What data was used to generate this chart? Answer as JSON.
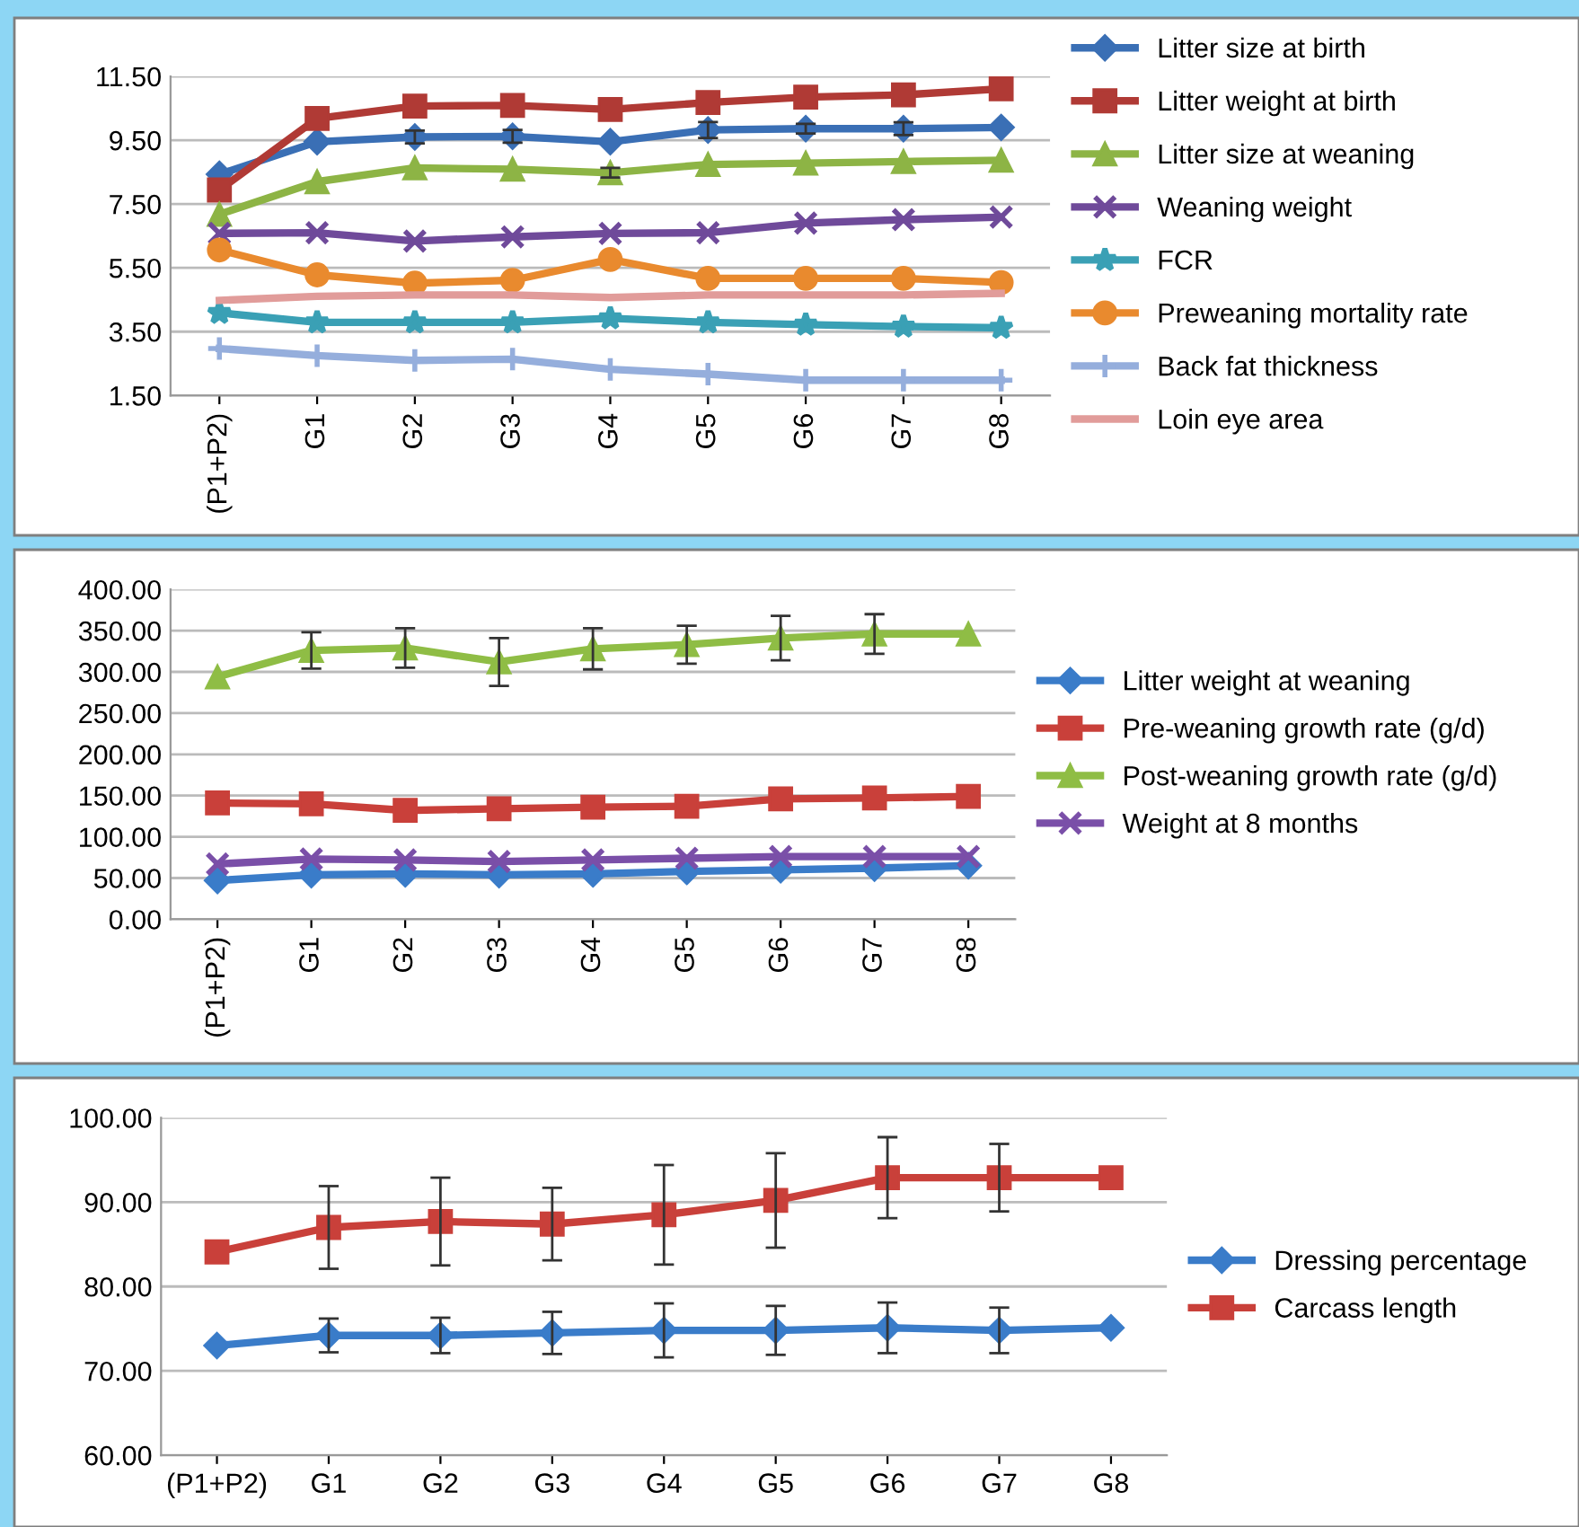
{
  "chart_data": [
    {
      "type": "line",
      "categories": [
        "(P1+P2)",
        "G1",
        "G2",
        "G3",
        "G4",
        "G5",
        "G6",
        "G7",
        "G8"
      ],
      "ylim": [
        1.5,
        11.5
      ],
      "yticks": [
        {
          "value": 1.5,
          "label": "1.50"
        },
        {
          "value": 3.5,
          "label": "3.50"
        },
        {
          "value": 5.5,
          "label": "5.50"
        },
        {
          "value": 7.5,
          "label": "7.50"
        },
        {
          "value": 9.5,
          "label": "9.50"
        },
        {
          "value": 11.5,
          "label": "11.50"
        }
      ],
      "grid": "y",
      "legend": "right",
      "series": [
        {
          "name": "Litter size at birth",
          "color": "#3a6fb5",
          "marker": "diamond",
          "values": [
            8.43,
            9.45,
            9.6,
            9.62,
            9.45,
            9.82,
            9.86,
            9.86,
            9.9
          ],
          "errors": [
            null,
            null,
            0.2,
            0.2,
            null,
            0.25,
            0.15,
            0.2,
            null
          ]
        },
        {
          "name": "Litter weight at birth",
          "color": "#b03a35",
          "marker": "square",
          "values": [
            7.94,
            10.18,
            10.57,
            10.59,
            10.46,
            10.68,
            10.85,
            10.92,
            11.11
          ]
        },
        {
          "name": "Litter size at weaning",
          "color": "#8db445",
          "marker": "triangle",
          "values": [
            7.18,
            8.2,
            8.63,
            8.59,
            8.48,
            8.74,
            8.78,
            8.83,
            8.87
          ],
          "errors": [
            null,
            null,
            null,
            null,
            0.15,
            null,
            null,
            null,
            null
          ]
        },
        {
          "name": "Weaning weight",
          "color": "#6f4a9a",
          "marker": "cross",
          "values": [
            6.58,
            6.6,
            6.34,
            6.47,
            6.58,
            6.6,
            6.9,
            7.01,
            7.09
          ]
        },
        {
          "name": "FCR",
          "color": "#3aa0b5",
          "marker": "star",
          "values": [
            4.09,
            3.79,
            3.79,
            3.79,
            3.92,
            3.79,
            3.72,
            3.66,
            3.62
          ]
        },
        {
          "name": "Preweaning mortality rate",
          "color": "#e98a2e",
          "marker": "circle",
          "values": [
            6.06,
            5.28,
            5.02,
            5.11,
            5.76,
            5.17,
            5.17,
            5.17,
            5.04
          ]
        },
        {
          "name": "Back fat thickness",
          "color": "#95aedc",
          "marker": "plus",
          "values": [
            2.97,
            2.75,
            2.6,
            2.64,
            2.32,
            2.17,
            1.98,
            1.98,
            1.98
          ]
        },
        {
          "name": "Loin eye area",
          "color": "#e19c9a",
          "marker": "none",
          "values": [
            4.48,
            4.61,
            4.65,
            4.65,
            4.57,
            4.65,
            4.65,
            4.65,
            4.7
          ]
        }
      ]
    },
    {
      "type": "line",
      "categories": [
        "(P1+P2)",
        "G1",
        "G2",
        "G3",
        "G4",
        "G5",
        "G6",
        "G7",
        "G8"
      ],
      "ylim": [
        0,
        400
      ],
      "yticks": [
        {
          "value": 0,
          "label": "0.00"
        },
        {
          "value": 50,
          "label": "50.00"
        },
        {
          "value": 100,
          "label": "100.00"
        },
        {
          "value": 150,
          "label": "150.00"
        },
        {
          "value": 200,
          "label": "200.00"
        },
        {
          "value": 250,
          "label": "250.00"
        },
        {
          "value": 300,
          "label": "300.00"
        },
        {
          "value": 350,
          "label": "350.00"
        },
        {
          "value": 400,
          "label": "400.00"
        }
      ],
      "grid": "y",
      "legend": "right",
      "series": [
        {
          "name": "Litter weight at weaning",
          "color": "#3a7cc9",
          "marker": "diamond",
          "values": [
            47,
            54,
            55,
            54,
            55,
            58,
            60,
            62,
            65
          ]
        },
        {
          "name": "Pre-weaning growth rate (g/d)",
          "color": "#c9403a",
          "marker": "square",
          "values": [
            141,
            140,
            132,
            134,
            136,
            137,
            146,
            147,
            149
          ]
        },
        {
          "name": "Post-weaning growth rate (g/d)",
          "color": "#8fbd45",
          "marker": "triangle",
          "values": [
            294,
            326,
            329,
            312,
            328,
            333,
            341,
            346,
            346
          ],
          "errors": [
            null,
            22,
            24,
            29,
            25,
            23,
            27,
            24,
            null
          ]
        },
        {
          "name": "Weight at 8 months",
          "color": "#7a4fa8",
          "marker": "cross",
          "values": [
            67,
            73,
            72,
            70,
            72,
            74,
            76,
            76,
            76
          ]
        }
      ]
    },
    {
      "type": "line",
      "categories": [
        "(P1+P2)",
        "G1",
        "G2",
        "G3",
        "G4",
        "G5",
        "G6",
        "G7",
        "G8"
      ],
      "ylim": [
        60,
        100
      ],
      "yticks": [
        {
          "value": 60,
          "label": "60.00"
        },
        {
          "value": 70,
          "label": "70.00"
        },
        {
          "value": 80,
          "label": "80.00"
        },
        {
          "value": 90,
          "label": "90.00"
        },
        {
          "value": 100,
          "label": "100.00"
        }
      ],
      "grid": "y",
      "legend": "right",
      "series": [
        {
          "name": "Dressing percentage",
          "color": "#3a7cc9",
          "marker": "diamond",
          "values": [
            73.0,
            74.2,
            74.2,
            74.5,
            74.8,
            74.8,
            75.1,
            74.8,
            75.1
          ],
          "errors": [
            null,
            2.0,
            2.1,
            2.5,
            3.2,
            2.9,
            3.0,
            2.7,
            null
          ]
        },
        {
          "name": "Carcass length",
          "color": "#c9403a",
          "marker": "square",
          "values": [
            84.1,
            87.0,
            87.7,
            87.4,
            88.5,
            90.2,
            92.9,
            92.9,
            92.9
          ],
          "errors": [
            null,
            4.9,
            5.2,
            4.3,
            5.9,
            5.6,
            4.8,
            4.0,
            null
          ]
        }
      ]
    }
  ]
}
